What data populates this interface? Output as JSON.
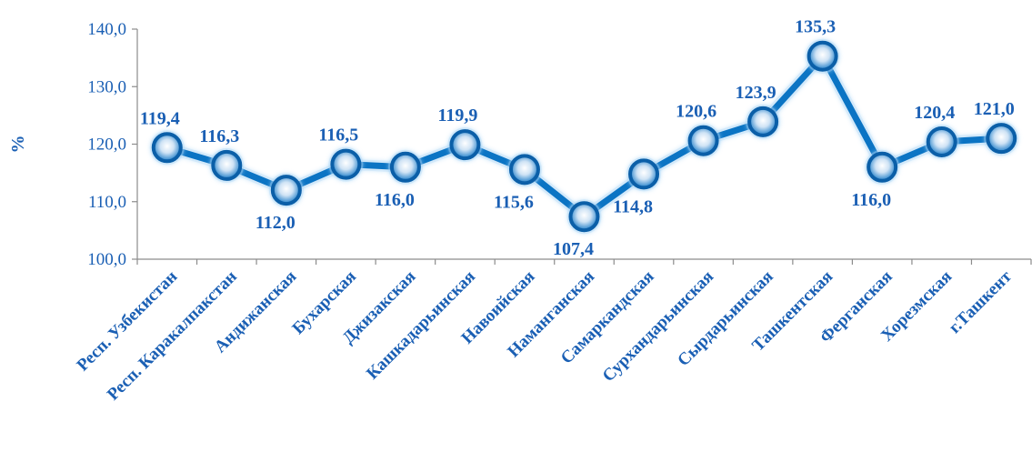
{
  "chart_data": {
    "type": "line",
    "ylabel": "%",
    "xlabel": "",
    "ylim": [
      100,
      140
    ],
    "yticks": [
      "100,0",
      "110,0",
      "120,0",
      "130,0",
      "140,0"
    ],
    "grid": false,
    "legend": "none",
    "categories": [
      "Респ. Узбекистан",
      "Респ. Каракалпакстан",
      "Андижанская",
      "Бухарская",
      "Джизакская",
      "Кашкадарьинская",
      "Навоийская",
      "Наманганская",
      "Самаркандская",
      "Сурхандарьинская",
      "Сырдарьинская",
      "Ташкентская",
      "Ферганская",
      "Хорезмская",
      "г.Ташкент"
    ],
    "series": [
      {
        "values": [
          119.4,
          116.3,
          112.0,
          116.5,
          116.0,
          119.9,
          115.6,
          107.4,
          114.8,
          120.6,
          123.9,
          135.3,
          116.0,
          120.4,
          121.0
        ],
        "labels": [
          "119,4",
          "116,3",
          "112,0",
          "116,5",
          "116,0",
          "119,9",
          "115,6",
          "107,4",
          "114,8",
          "120,6",
          "123,9",
          "135,3",
          "116,0",
          "120,4",
          "121,0"
        ],
        "label_positions": [
          "above",
          "above",
          "below",
          "above",
          "below",
          "above",
          "below",
          "below",
          "below",
          "above",
          "above",
          "above",
          "below",
          "above",
          "above"
        ]
      }
    ],
    "colors": {
      "line": "#0b74c4",
      "text": "#1a5fb4",
      "marker_edge": "#0b5fa8",
      "axis": "#8c8c8c"
    }
  }
}
